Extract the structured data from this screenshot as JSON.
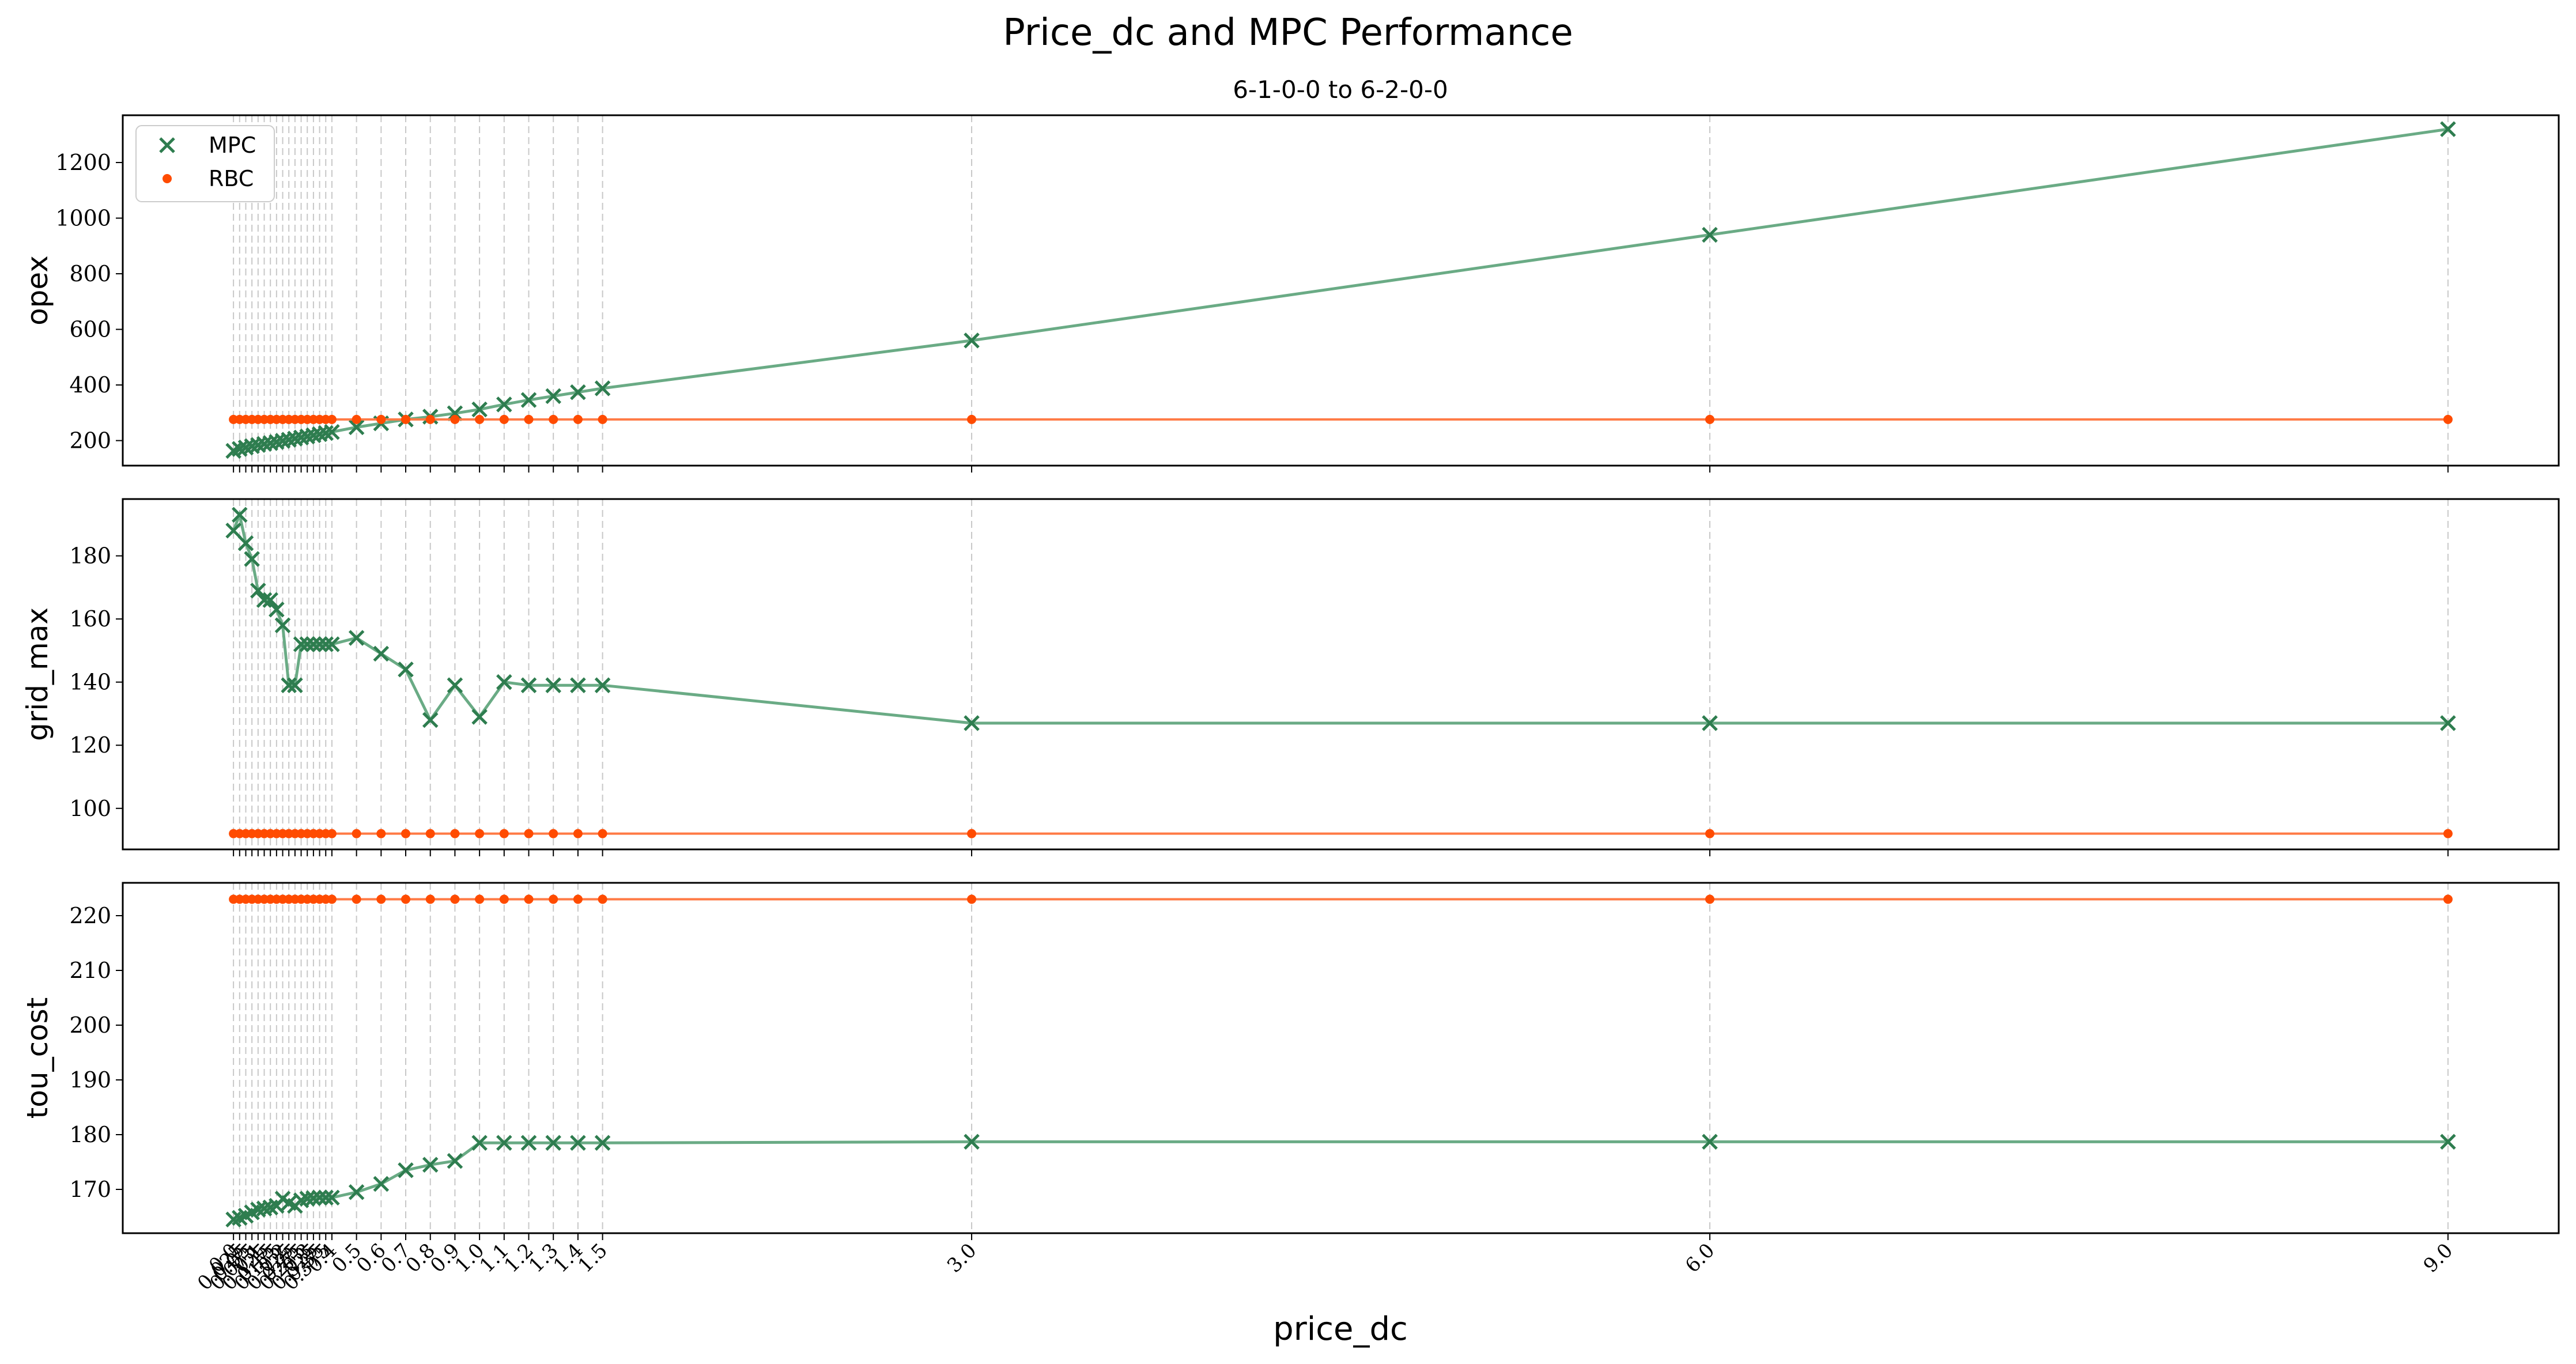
{
  "figure": {
    "suptitle": "Price_dc and MPC Performance",
    "subtitle": "6-1-0-0 to 6-2-0-0",
    "xlabel": "price_dc"
  },
  "chart_data": {
    "type": "line",
    "x": [
      0.0,
      0.025,
      0.05,
      0.075,
      0.1,
      0.125,
      0.15,
      0.175,
      0.2,
      0.225,
      0.25,
      0.275,
      0.3,
      0.325,
      0.35,
      0.375,
      0.4,
      0.5,
      0.6,
      0.7,
      0.8,
      0.9,
      1.0,
      1.1,
      1.2,
      1.3,
      1.4,
      1.5,
      3.0,
      6.0,
      9.0
    ],
    "x_tick_labels": [
      "0.0",
      "0.025",
      "0.05",
      "0.075",
      "0.1",
      "0.125",
      "0.15",
      "0.175",
      "0.2",
      "0.225",
      "0.25",
      "0.275",
      "0.3",
      "0.325",
      "0.35",
      "0.375",
      "0.4",
      "0.5",
      "0.6",
      "0.7",
      "0.8",
      "0.9",
      "1.0",
      "1.1",
      "1.2",
      "1.3",
      "1.4",
      "1.5",
      "3.0",
      "6.0",
      "9.0"
    ],
    "xlim": [
      -0.45,
      9.45
    ],
    "grid": "vertical dashed at each x tick",
    "legend": {
      "placement": "top-left",
      "entries": [
        "MPC",
        "RBC"
      ]
    },
    "colors": {
      "mpc": "#2e7d4f",
      "mpc_line": "#6aab85",
      "rbc": "#ff4b00",
      "rbc_line": "#ff7a45",
      "grid": "#c8c8c8"
    },
    "panels": [
      {
        "ylabel": "opex",
        "ylim": [
          110,
          1370
        ],
        "yticks": [
          200,
          400,
          600,
          800,
          1000,
          1200
        ],
        "series": [
          {
            "name": "MPC",
            "marker": "x",
            "values": [
              163,
              170,
              175,
              180,
              184,
              188,
              191,
              195,
              199,
              203,
              207,
              211,
              215,
              219,
              223,
              227,
              231,
              248,
              262,
              276,
              286,
              298,
              312,
              330,
              346,
              360,
              374,
              388,
              560,
              940,
              1320
            ]
          },
          {
            "name": "RBC",
            "marker": "dot",
            "values": [
              276,
              276,
              276,
              276,
              276,
              276,
              276,
              276,
              276,
              276,
              276,
              276,
              276,
              276,
              276,
              276,
              276,
              276,
              276,
              276,
              276,
              276,
              276,
              276,
              276,
              276,
              276,
              276,
              276,
              276,
              276
            ]
          }
        ]
      },
      {
        "ylabel": "grid_max",
        "ylim": [
          87,
          198
        ],
        "yticks": [
          100,
          120,
          140,
          160,
          180
        ],
        "series": [
          {
            "name": "MPC",
            "marker": "x",
            "values": [
              188,
              193,
              184,
              179,
              169,
              166,
              166,
              163,
              158,
              139,
              139,
              152,
              152,
              152,
              152,
              152,
              152,
              154,
              149,
              144,
              128,
              139,
              129,
              140,
              139,
              139,
              139,
              139,
              127,
              127,
              127
            ]
          },
          {
            "name": "RBC",
            "marker": "dot",
            "values": [
              92,
              92,
              92,
              92,
              92,
              92,
              92,
              92,
              92,
              92,
              92,
              92,
              92,
              92,
              92,
              92,
              92,
              92,
              92,
              92,
              92,
              92,
              92,
              92,
              92,
              92,
              92,
              92,
              92,
              92,
              92
            ]
          }
        ]
      },
      {
        "ylabel": "tou_cost",
        "ylim": [
          162,
          226
        ],
        "yticks": [
          170,
          180,
          190,
          200,
          210,
          220
        ],
        "series": [
          {
            "name": "MPC",
            "marker": "x",
            "values": [
              164.5,
              164.8,
              165.2,
              165.8,
              166.3,
              166.5,
              166.7,
              167.0,
              168.3,
              167.5,
              167.0,
              168.0,
              168.3,
              168.4,
              168.5,
              168.5,
              168.5,
              169.5,
              171.0,
              173.5,
              174.5,
              175.2,
              178.5,
              178.5,
              178.5,
              178.5,
              178.5,
              178.5,
              178.7,
              178.7,
              178.7
            ]
          },
          {
            "name": "RBC",
            "marker": "dot",
            "values": [
              223,
              223,
              223,
              223,
              223,
              223,
              223,
              223,
              223,
              223,
              223,
              223,
              223,
              223,
              223,
              223,
              223,
              223,
              223,
              223,
              223,
              223,
              223,
              223,
              223,
              223,
              223,
              223,
              223,
              223,
              223
            ]
          }
        ]
      }
    ]
  }
}
